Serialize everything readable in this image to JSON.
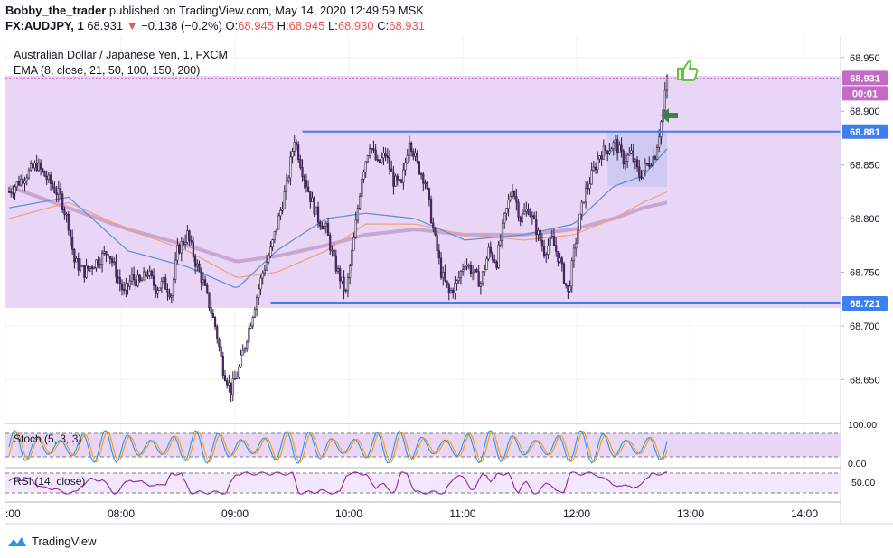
{
  "header": {
    "author": "Bobby_the_trader",
    "published": " published on TradingView.com, May 14, 2020 12:49:59 MSK",
    "symbol": "FX:AUDJPY, 1",
    "last": "68.931",
    "arrow": "▼",
    "change": "−0.138 (−0.2%)",
    "o_label": "O:",
    "o_val": "68.945",
    "h_label": "H:",
    "h_val": "68.945",
    "l_label": "L:",
    "l_val": "68.930",
    "c_label": "C:",
    "c_val": "68.931"
  },
  "legend": {
    "title": "Australian Dollar / Japanese Yen, 1, FXCM",
    "ema": "EMA (8, close, 21, 50, 100, 150, 200)",
    "stoch": "Stoch (5, 3, 3)",
    "rsi": "RSI (14, close)"
  },
  "price_badges": {
    "last": "68.931",
    "countdown": "00:01",
    "resistance": "68.881",
    "support": "68.721"
  },
  "footer": {
    "brand": "TradingView"
  },
  "colors": {
    "range_fill": "#e9d6f7",
    "level_line": "#3d7ef0",
    "candle": "#2b1a3e",
    "candle_body": "#5a2d7a",
    "ema_fast": "#5b8bd9",
    "ema_mid": "#f0a07a",
    "ema_slow": "#c8a6cf",
    "badge_last": "#c26ac6",
    "stoch_k": "#2196f3",
    "stoch_d": "#ff9800",
    "rsi": "#8e24aa",
    "grid": "#f0f3fa",
    "thumb": "#5ec43a",
    "arrow_green": "#3b7f4a"
  },
  "chart_data": {
    "type": "candlestick",
    "title": "Australian Dollar / Japanese Yen, 1, FXCM",
    "ylim": [
      68.61,
      68.97
    ],
    "y_ticks": [
      "68.950",
      "68.900",
      "68.850",
      "68.800",
      "68.750",
      "68.700",
      "68.650"
    ],
    "x_ticks": [
      ":00",
      "08:00",
      "09:00",
      "10:00",
      "11:00",
      "12:00",
      "13:00",
      "14:00"
    ],
    "levels": {
      "resistance": 68.881,
      "support": 68.721,
      "last": 68.931
    },
    "close_path": [
      [
        0,
        68.825
      ],
      [
        8,
        68.84
      ],
      [
        14,
        68.85
      ],
      [
        20,
        68.835
      ],
      [
        26,
        68.82
      ],
      [
        30,
        68.795
      ],
      [
        33,
        68.76
      ],
      [
        38,
        68.75
      ],
      [
        44,
        68.76
      ],
      [
        50,
        68.77
      ],
      [
        54,
        68.75
      ],
      [
        58,
        68.73
      ],
      [
        62,
        68.745
      ],
      [
        66,
        68.74
      ],
      [
        70,
        68.75
      ],
      [
        74,
        68.735
      ],
      [
        78,
        68.74
      ],
      [
        82,
        68.73
      ],
      [
        85,
        68.77
      ],
      [
        90,
        68.785
      ],
      [
        94,
        68.76
      ],
      [
        98,
        68.74
      ],
      [
        104,
        68.7
      ],
      [
        108,
        68.66
      ],
      [
        112,
        68.64
      ],
      [
        116,
        68.66
      ],
      [
        120,
        68.69
      ],
      [
        124,
        68.72
      ],
      [
        128,
        68.75
      ],
      [
        132,
        68.77
      ],
      [
        136,
        68.8
      ],
      [
        140,
        68.83
      ],
      [
        144,
        68.875
      ],
      [
        148,
        68.845
      ],
      [
        152,
        68.82
      ],
      [
        156,
        68.8
      ],
      [
        160,
        68.79
      ],
      [
        164,
        68.76
      ],
      [
        168,
        68.74
      ],
      [
        170,
        68.73
      ],
      [
        174,
        68.78
      ],
      [
        178,
        68.84
      ],
      [
        182,
        68.87
      ],
      [
        186,
        68.85
      ],
      [
        190,
        68.86
      ],
      [
        194,
        68.835
      ],
      [
        198,
        68.83
      ],
      [
        202,
        68.875
      ],
      [
        206,
        68.85
      ],
      [
        210,
        68.835
      ],
      [
        214,
        68.79
      ],
      [
        218,
        68.75
      ],
      [
        222,
        68.73
      ],
      [
        226,
        68.74
      ],
      [
        230,
        68.76
      ],
      [
        234,
        68.75
      ],
      [
        238,
        68.74
      ],
      [
        242,
        68.77
      ],
      [
        246,
        68.76
      ],
      [
        250,
        68.8
      ],
      [
        254,
        68.83
      ],
      [
        258,
        68.8
      ],
      [
        262,
        68.81
      ],
      [
        266,
        68.79
      ],
      [
        270,
        68.77
      ],
      [
        274,
        68.78
      ],
      [
        278,
        68.76
      ],
      [
        282,
        68.73
      ],
      [
        286,
        68.78
      ],
      [
        290,
        68.82
      ],
      [
        294,
        68.84
      ],
      [
        298,
        68.86
      ],
      [
        302,
        68.865
      ],
      [
        306,
        68.87
      ],
      [
        310,
        68.855
      ],
      [
        314,
        68.86
      ],
      [
        318,
        68.84
      ],
      [
        322,
        68.85
      ],
      [
        326,
        68.86
      ],
      [
        330,
        68.9
      ],
      [
        332,
        68.931
      ]
    ],
    "ema_fast": [
      [
        0,
        68.81
      ],
      [
        30,
        68.82
      ],
      [
        60,
        68.77
      ],
      [
        90,
        68.755
      ],
      [
        115,
        68.735
      ],
      [
        135,
        68.77
      ],
      [
        160,
        68.8
      ],
      [
        180,
        68.805
      ],
      [
        205,
        68.8
      ],
      [
        230,
        68.78
      ],
      [
        260,
        68.785
      ],
      [
        285,
        68.795
      ],
      [
        305,
        68.83
      ],
      [
        320,
        68.84
      ],
      [
        332,
        68.865
      ]
    ],
    "ema_mid": [
      [
        0,
        68.8
      ],
      [
        30,
        68.815
      ],
      [
        60,
        68.79
      ],
      [
        90,
        68.77
      ],
      [
        115,
        68.745
      ],
      [
        135,
        68.75
      ],
      [
        160,
        68.77
      ],
      [
        180,
        68.795
      ],
      [
        205,
        68.795
      ],
      [
        230,
        68.785
      ],
      [
        260,
        68.78
      ],
      [
        285,
        68.785
      ],
      [
        305,
        68.8
      ],
      [
        320,
        68.815
      ],
      [
        332,
        68.825
      ]
    ],
    "ema_slow": [
      [
        0,
        68.83
      ],
      [
        30,
        68.81
      ],
      [
        60,
        68.79
      ],
      [
        90,
        68.775
      ],
      [
        115,
        68.76
      ],
      [
        135,
        68.765
      ],
      [
        160,
        68.775
      ],
      [
        180,
        68.785
      ],
      [
        205,
        68.79
      ],
      [
        230,
        68.785
      ],
      [
        260,
        68.785
      ],
      [
        285,
        68.79
      ],
      [
        305,
        68.8
      ],
      [
        320,
        68.81
      ],
      [
        332,
        68.815
      ]
    ],
    "stoch": {
      "ylim": [
        0,
        100
      ],
      "ticks": [
        "100.00",
        "0.00"
      ],
      "bands": [
        80,
        20
      ]
    },
    "rsi": {
      "ylim": [
        20,
        80
      ],
      "ticks": [
        "50.00"
      ],
      "bands": [
        70,
        30
      ]
    }
  }
}
